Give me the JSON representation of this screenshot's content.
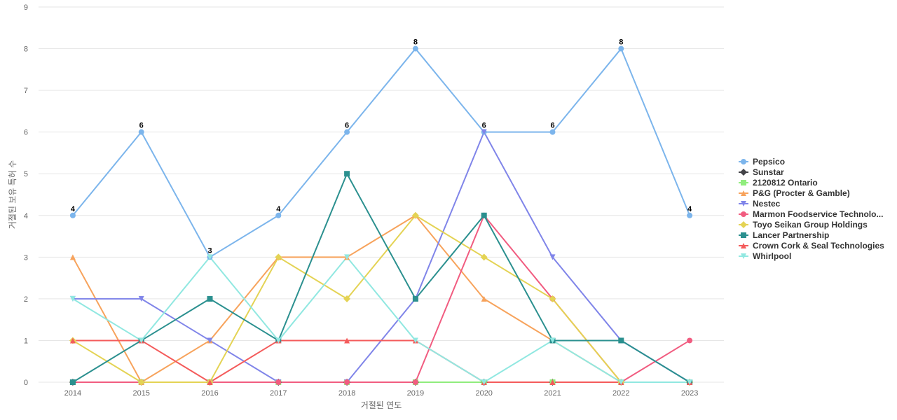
{
  "chart_data": {
    "type": "line",
    "title": "",
    "xlabel": "거절된 연도",
    "ylabel": "거절된 보유 특허 수",
    "x": [
      "2014",
      "2015",
      "2016",
      "2017",
      "2018",
      "2019",
      "2020",
      "2021",
      "2022",
      "2023"
    ],
    "ylim": [
      0,
      9
    ],
    "yticks": [
      0,
      1,
      2,
      3,
      4,
      5,
      6,
      7,
      8,
      9
    ],
    "grid": true,
    "legend_position": "right",
    "label_series": "Pepsico",
    "series": [
      {
        "name": "Pepsico",
        "color": "#7cb5ec",
        "marker": "circle",
        "values": [
          4,
          6,
          3,
          4,
          6,
          8,
          6,
          6,
          8,
          4
        ]
      },
      {
        "name": "Sunstar",
        "color": "#434348",
        "marker": "diamond",
        "values": [
          0,
          0,
          0,
          0,
          0,
          0,
          0,
          0,
          0,
          0
        ]
      },
      {
        "name": "2120812 Ontario",
        "color": "#90ed7d",
        "marker": "square",
        "values": [
          0,
          0,
          0,
          0,
          0,
          0,
          0,
          0,
          0,
          0
        ]
      },
      {
        "name": "P&G (Procter & Gamble)",
        "color": "#f7a35c",
        "marker": "triangle",
        "values": [
          3,
          0,
          1,
          3,
          3,
          4,
          2,
          1,
          0,
          0
        ]
      },
      {
        "name": "Nestec",
        "color": "#8085e9",
        "marker": "triangle-down",
        "values": [
          2,
          2,
          1,
          0,
          0,
          2,
          6,
          3,
          1,
          0
        ]
      },
      {
        "name": "Marmon Foodservice Technolo...",
        "color": "#f15c80",
        "marker": "circle",
        "values": [
          0,
          0,
          0,
          0,
          0,
          0,
          4,
          2,
          0,
          1
        ]
      },
      {
        "name": "Toyo Seikan Group Holdings",
        "color": "#e4d354",
        "marker": "diamond",
        "values": [
          1,
          0,
          0,
          3,
          2,
          4,
          3,
          2,
          0,
          0
        ]
      },
      {
        "name": "Lancer Partnership",
        "color": "#2b908f",
        "marker": "square",
        "values": [
          0,
          1,
          2,
          1,
          5,
          2,
          4,
          1,
          1,
          0
        ]
      },
      {
        "name": "Crown Cork & Seal Technologies",
        "color": "#f45b5b",
        "marker": "triangle",
        "values": [
          1,
          1,
          0,
          1,
          1,
          1,
          0,
          0,
          0,
          0
        ]
      },
      {
        "name": "Whirlpool",
        "color": "#91e8e1",
        "marker": "triangle-down",
        "values": [
          2,
          1,
          3,
          1,
          3,
          1,
          0,
          1,
          0,
          0
        ]
      }
    ]
  }
}
